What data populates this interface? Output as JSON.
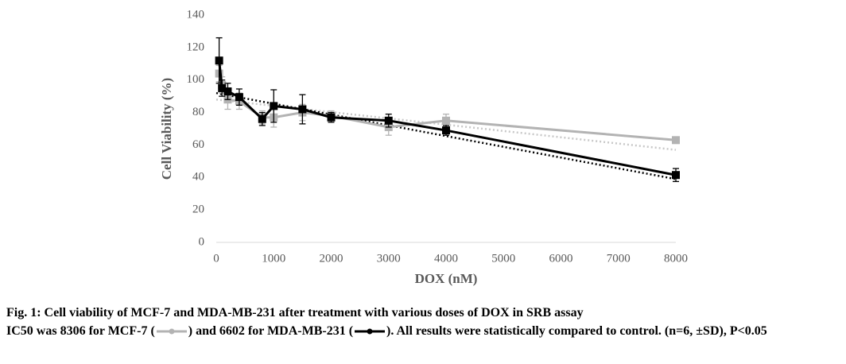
{
  "chart_data": {
    "type": "line",
    "x_label": "DOX (nM)",
    "y_label": "Cell Viability (%)",
    "x": [
      50,
      100,
      200,
      400,
      800,
      1000,
      1500,
      2000,
      3000,
      4000,
      8000
    ],
    "xlim": [
      0,
      8000
    ],
    "xticks": [
      0,
      1000,
      2000,
      3000,
      4000,
      5000,
      6000,
      7000,
      8000
    ],
    "ylim": [
      0,
      140
    ],
    "yticks": [
      0,
      20,
      40,
      60,
      80,
      100,
      120,
      140
    ],
    "grid": false,
    "series": [
      {
        "name": "MCF-7",
        "color": "#b3b3b3",
        "trend_color": "#c8c8c8",
        "values": [
          104,
          97,
          88,
          87,
          77,
          77,
          80,
          78,
          71,
          75,
          63
        ],
        "errors": [
          5,
          5,
          6,
          5,
          4,
          6,
          5,
          3,
          5,
          4,
          2
        ],
        "trend": {
          "x": [
            0,
            8000
          ],
          "values": [
            88,
            57
          ]
        }
      },
      {
        "name": "MDA-MB-231",
        "color": "#000000",
        "trend_color": "#000000",
        "values": [
          112,
          95,
          93,
          89.5,
          76,
          84,
          82,
          77,
          75,
          69,
          41.5
        ],
        "errors": [
          14,
          5,
          5,
          5,
          4,
          10,
          9,
          3,
          4,
          3,
          4
        ],
        "trend": {
          "x": [
            0,
            8000
          ],
          "values": [
            92,
            39
          ]
        }
      }
    ]
  },
  "caption": {
    "title": "Fig. 1: Cell viability of MCF-7 and MDA-MB-231 after treatment with various doses of DOX in SRB assay",
    "part_a": "IC50 was 8306 for",
    "part_b": "and 6602 for",
    "part_c": "All results were statistically compared to control. (n=6, ±SD), P<0.05"
  }
}
